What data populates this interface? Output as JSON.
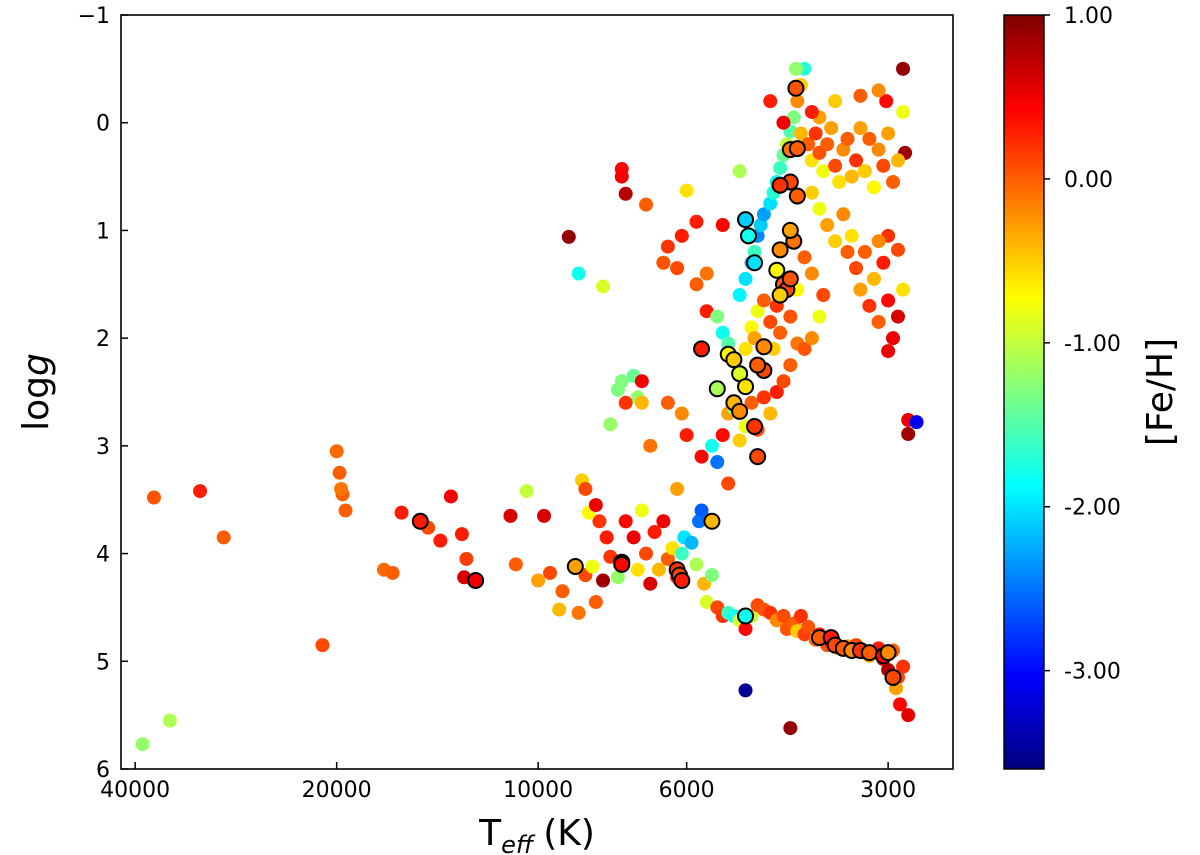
{
  "chart_data": {
    "type": "scatter",
    "title": "",
    "xlabel": {
      "main": "T",
      "sub": "eff",
      "unit": "(K)"
    },
    "ylabel": {
      "prefix": "log",
      "italic": "g"
    },
    "x_scale": "log",
    "x_reversed": true,
    "xlim": [
      42000,
      2400
    ],
    "ylim": [
      -1,
      6
    ],
    "y_reversed": true,
    "xticks": [
      40000,
      20000,
      10000,
      6000,
      3000
    ],
    "xtick_labels": [
      "40000",
      "20000",
      "10000",
      "6000",
      "3000"
    ],
    "yticks": [
      -1,
      0,
      1,
      2,
      3,
      4,
      5,
      6
    ],
    "ytick_labels": [
      "−1",
      "0",
      "1",
      "2",
      "3",
      "4",
      "5",
      "6"
    ],
    "colorbar": {
      "label": "[Fe/H]",
      "range": [
        -3.6,
        1.0
      ],
      "ticks": [
        1.0,
        0.0,
        -1.0,
        -2.0,
        -3.0
      ],
      "tick_labels": [
        "1.00",
        "0.00",
        "-1.00",
        "-2.00",
        "-3.00"
      ],
      "colormap": "jet",
      "colors": [
        "#00007f",
        "#0000ff",
        "#007fff",
        "#00ffff",
        "#7fff7f",
        "#ffff00",
        "#ff7f00",
        "#ff0000",
        "#7f0000"
      ]
    },
    "marker_edge_color": "#000000",
    "grid": false,
    "points": [
      [
        39000,
        5.77,
        -1.2
      ],
      [
        35500,
        5.55,
        -1.1
      ],
      [
        37500,
        3.48,
        0.05
      ],
      [
        32000,
        3.42,
        0.3
      ],
      [
        29500,
        3.85,
        0.0
      ],
      [
        21000,
        4.85,
        0.1
      ],
      [
        20000,
        3.05,
        -0.05
      ],
      [
        19800,
        3.25,
        0.0
      ],
      [
        19600,
        3.45,
        0.0
      ],
      [
        19400,
        3.6,
        0.0
      ],
      [
        19700,
        3.4,
        -0.1
      ],
      [
        17000,
        4.15,
        -0.05
      ],
      [
        16500,
        4.18,
        0.0
      ],
      [
        16000,
        3.62,
        0.3
      ],
      [
        15000,
        3.7,
        0.25
      ],
      [
        14600,
        3.76,
        0.1
      ],
      [
        14000,
        3.88,
        0.3
      ],
      [
        13500,
        3.47,
        0.45
      ],
      [
        12900,
        4.22,
        0.6
      ],
      [
        13000,
        3.82,
        0.3
      ],
      [
        12800,
        4.05,
        0.15
      ],
      [
        11000,
        3.65,
        0.6
      ],
      [
        10800,
        4.1,
        0.0
      ],
      [
        10400,
        3.42,
        -1.0
      ],
      [
        10000,
        4.25,
        -0.3
      ],
      [
        9800,
        3.65,
        0.6
      ],
      [
        9600,
        4.18,
        0.1
      ],
      [
        9300,
        4.52,
        -0.4
      ],
      [
        9000,
        1.06,
        0.9
      ],
      [
        9200,
        4.35,
        0.0
      ],
      [
        8700,
        4.55,
        -0.1
      ],
      [
        8500,
        4.2,
        0.1
      ],
      [
        8300,
        4.12,
        -0.8
      ],
      [
        8100,
        3.7,
        0.2
      ],
      [
        8000,
        4.25,
        0.85
      ],
      [
        8200,
        4.45,
        0.0
      ],
      [
        8400,
        3.62,
        -0.7
      ],
      [
        8600,
        3.32,
        -0.5
      ],
      [
        8500,
        3.4,
        0.1
      ],
      [
        8200,
        3.55,
        0.5
      ],
      [
        7900,
        3.85,
        0.3
      ],
      [
        7800,
        4.03,
        0.2
      ],
      [
        7600,
        4.22,
        -1.2
      ],
      [
        7500,
        4.1,
        0.3
      ],
      [
        7400,
        3.7,
        0.4
      ],
      [
        7200,
        3.85,
        0.5
      ],
      [
        7100,
        4.15,
        -0.6
      ],
      [
        7000,
        3.6,
        -0.8
      ],
      [
        6900,
        4.0,
        0.1
      ],
      [
        6800,
        4.28,
        0.6
      ],
      [
        6700,
        3.8,
        0.3
      ],
      [
        6600,
        4.15,
        -0.4
      ],
      [
        6500,
        3.7,
        0.5
      ],
      [
        6400,
        4.05,
        0.0
      ],
      [
        6300,
        3.95,
        -0.6
      ],
      [
        6200,
        4.22,
        0.2
      ],
      [
        6100,
        4.0,
        -1.6
      ],
      [
        6050,
        3.85,
        -2.0
      ],
      [
        5900,
        3.9,
        -2.2
      ],
      [
        5800,
        4.1,
        -1.1
      ],
      [
        5750,
        3.7,
        -2.5
      ],
      [
        5700,
        3.6,
        -2.6
      ],
      [
        5650,
        4.28,
        -0.4
      ],
      [
        5600,
        4.45,
        -0.9
      ],
      [
        5500,
        4.2,
        -1.3
      ],
      [
        5400,
        4.5,
        0.1
      ],
      [
        5300,
        4.58,
        0.2
      ],
      [
        5200,
        4.55,
        -1.6
      ],
      [
        5100,
        4.58,
        -1.8
      ],
      [
        5000,
        4.62,
        -0.9
      ],
      [
        4900,
        4.7,
        0.4
      ],
      [
        4800,
        4.58,
        -1.0
      ],
      [
        4700,
        4.48,
        0.1
      ],
      [
        4600,
        4.52,
        0.05
      ],
      [
        4500,
        4.55,
        0.2
      ],
      [
        4400,
        4.62,
        -0.2
      ],
      [
        4300,
        4.58,
        0.1
      ],
      [
        4250,
        4.7,
        0.05
      ],
      [
        4150,
        4.65,
        0.0
      ],
      [
        4100,
        4.72,
        -0.5
      ],
      [
        4050,
        4.58,
        0.2
      ],
      [
        4000,
        4.75,
        0.15
      ],
      [
        3950,
        4.68,
        0.05
      ],
      [
        3850,
        4.8,
        -0.1
      ],
      [
        3800,
        4.75,
        0.3
      ],
      [
        3700,
        4.85,
        0.05
      ],
      [
        3650,
        4.82,
        0.4
      ],
      [
        3550,
        4.88,
        0.0
      ],
      [
        3450,
        4.86,
        -0.3
      ],
      [
        3400,
        4.9,
        0.2
      ],
      [
        3350,
        4.85,
        0.1
      ],
      [
        3250,
        4.92,
        0.05
      ],
      [
        3200,
        4.95,
        -0.4
      ],
      [
        3100,
        4.88,
        0.3
      ],
      [
        3050,
        4.98,
        0.5
      ],
      [
        3000,
        5.08,
        0.8
      ],
      [
        2950,
        4.9,
        0.0
      ],
      [
        2900,
        5.15,
        0.1
      ],
      [
        2920,
        5.25,
        -0.3
      ],
      [
        2880,
        5.4,
        0.4
      ],
      [
        2800,
        5.5,
        0.55
      ],
      [
        2850,
        5.05,
        0.2
      ],
      [
        4200,
        5.62,
        0.9
      ],
      [
        4900,
        5.27,
        -3.5
      ],
      [
        2800,
        2.76,
        0.5
      ],
      [
        2720,
        2.78,
        -3.1
      ],
      [
        2800,
        2.89,
        0.85
      ],
      [
        2830,
        0.28,
        0.85
      ],
      [
        2850,
        -0.5,
        0.9
      ],
      [
        7500,
        0.43,
        0.4
      ],
      [
        7500,
        0.5,
        0.45
      ],
      [
        7400,
        0.66,
        0.75
      ],
      [
        6900,
        0.76,
        0.0
      ],
      [
        6000,
        0.63,
        -0.6
      ],
      [
        6200,
        1.35,
        0.1
      ],
      [
        6100,
        1.05,
        0.3
      ],
      [
        5800,
        0.92,
        0.3
      ],
      [
        6400,
        1.15,
        0.2
      ],
      [
        6500,
        1.3,
        0.05
      ],
      [
        7600,
        2.48,
        -1.3
      ],
      [
        7500,
        2.4,
        -1.3
      ],
      [
        7800,
        2.8,
        -1.2
      ],
      [
        7200,
        2.35,
        -1.4
      ],
      [
        7000,
        2.4,
        0.5
      ],
      [
        7100,
        2.55,
        -1.2
      ],
      [
        7400,
        2.6,
        0.2
      ],
      [
        8000,
        1.52,
        -0.9
      ],
      [
        8700,
        1.4,
        -1.8
      ],
      [
        6400,
        2.6,
        0.0
      ],
      [
        6100,
        2.7,
        -0.2
      ],
      [
        6000,
        2.9,
        0.3
      ],
      [
        6200,
        3.4,
        -0.3
      ],
      [
        5700,
        3.1,
        0.4
      ],
      [
        5500,
        3.0,
        -1.8
      ],
      [
        5400,
        3.15,
        -2.5
      ],
      [
        5200,
        3.35,
        0.1
      ],
      [
        5200,
        2.7,
        -0.3
      ],
      [
        5300,
        2.9,
        0.4
      ],
      [
        5000,
        2.95,
        -0.5
      ],
      [
        5100,
        2.65,
        -1.2
      ],
      [
        4900,
        2.82,
        -0.8
      ],
      [
        4800,
        2.6,
        0.0
      ],
      [
        4700,
        2.85,
        0.1
      ],
      [
        4600,
        2.55,
        0.2
      ],
      [
        4500,
        2.7,
        -0.4
      ],
      [
        4400,
        2.5,
        0.3
      ],
      [
        4300,
        2.4,
        0.1
      ],
      [
        4200,
        2.25,
        0.0
      ],
      [
        4100,
        2.05,
        -0.1
      ],
      [
        4000,
        2.1,
        0.05
      ],
      [
        3900,
        2.0,
        -0.2
      ],
      [
        5600,
        1.75,
        0.3
      ],
      [
        5800,
        1.5,
        0.0
      ],
      [
        5400,
        1.8,
        -1.3
      ],
      [
        5300,
        1.95,
        -1.8
      ],
      [
        5200,
        2.05,
        -1.5
      ],
      [
        5100,
        2.2,
        -1.0
      ],
      [
        5000,
        2.35,
        -1.4
      ],
      [
        4900,
        2.1,
        -0.6
      ],
      [
        4800,
        1.9,
        -0.7
      ],
      [
        4750,
        2.0,
        -0.3
      ],
      [
        4700,
        1.75,
        -0.8
      ],
      [
        4600,
        1.65,
        0.0
      ],
      [
        4500,
        1.85,
        0.1
      ],
      [
        4450,
        2.1,
        -0.5
      ],
      [
        4400,
        1.7,
        0.2
      ],
      [
        4350,
        1.95,
        0.0
      ],
      [
        4200,
        1.8,
        0.05
      ],
      [
        5000,
        1.6,
        -1.9
      ],
      [
        4900,
        1.45,
        -2.0
      ],
      [
        4800,
        1.3,
        -2.2
      ],
      [
        4750,
        1.2,
        -1.6
      ],
      [
        4700,
        1.05,
        -2.4
      ],
      [
        4650,
        0.95,
        -2.1
      ],
      [
        4600,
        0.85,
        -2.3
      ],
      [
        4500,
        0.75,
        -2.0
      ],
      [
        4450,
        0.65,
        -1.7
      ],
      [
        4400,
        0.55,
        -1.9
      ],
      [
        4350,
        0.42,
        -1.6
      ],
      [
        4300,
        0.3,
        -1.4
      ],
      [
        4250,
        0.2,
        -1.0
      ],
      [
        4200,
        0.08,
        -1.5
      ],
      [
        4150,
        -0.05,
        -1.3
      ],
      [
        4100,
        -0.2,
        -0.2
      ],
      [
        4050,
        -0.35,
        -0.5
      ],
      [
        4000,
        -0.5,
        -1.7
      ],
      [
        4120,
        -0.5,
        -1.2
      ],
      [
        4050,
        0.1,
        -0.4
      ],
      [
        3950,
        0.2,
        0.0
      ],
      [
        3900,
        0.35,
        -0.6
      ],
      [
        3850,
        0.1,
        0.2
      ],
      [
        3800,
        0.28,
        0.05
      ],
      [
        3750,
        0.45,
        -0.8
      ],
      [
        3700,
        0.2,
        0.0
      ],
      [
        3650,
        0.05,
        -0.3
      ],
      [
        3600,
        0.4,
        0.1
      ],
      [
        3550,
        0.55,
        -0.6
      ],
      [
        3500,
        0.25,
        -0.2
      ],
      [
        3450,
        0.15,
        0.0
      ],
      [
        3400,
        0.5,
        -0.4
      ],
      [
        3350,
        0.35,
        0.2
      ],
      [
        3300,
        0.05,
        -0.3
      ],
      [
        3250,
        0.45,
        -0.5
      ],
      [
        3200,
        0.15,
        0.0
      ],
      [
        3150,
        0.6,
        -0.7
      ],
      [
        3100,
        0.25,
        -0.2
      ],
      [
        3050,
        0.4,
        0.1
      ],
      [
        3000,
        0.1,
        -0.3
      ],
      [
        2950,
        0.55,
        0.0
      ],
      [
        2900,
        0.35,
        -0.4
      ],
      [
        2850,
        -0.1,
        -0.8
      ],
      [
        3020,
        -0.2,
        0.4
      ],
      [
        3100,
        -0.3,
        -0.2
      ],
      [
        3300,
        -0.25,
        0.0
      ],
      [
        3600,
        -0.2,
        -0.5
      ],
      [
        3800,
        -0.05,
        -0.3
      ],
      [
        3900,
        0.65,
        -0.5
      ],
      [
        3800,
        0.8,
        -0.8
      ],
      [
        3700,
        0.95,
        -0.3
      ],
      [
        3600,
        1.1,
        -0.5
      ],
      [
        3500,
        0.85,
        -0.2
      ],
      [
        3450,
        1.2,
        0.0
      ],
      [
        3400,
        1.05,
        -0.6
      ],
      [
        3350,
        1.35,
        0.1
      ],
      [
        3300,
        1.55,
        -0.3
      ],
      [
        3250,
        1.2,
        0.0
      ],
      [
        3200,
        1.7,
        0.2
      ],
      [
        3150,
        1.45,
        -0.4
      ],
      [
        3100,
        1.85,
        0.0
      ],
      [
        3050,
        1.3,
        0.3
      ],
      [
        3000,
        1.65,
        0.4
      ],
      [
        2950,
        2.0,
        0.5
      ],
      [
        2900,
        1.8,
        0.6
      ],
      [
        2850,
        1.55,
        -0.6
      ],
      [
        3000,
        2.12,
        0.5
      ],
      [
        3800,
        1.8,
        -0.8
      ],
      [
        3750,
        1.6,
        0.1
      ],
      [
        3900,
        1.4,
        -0.2
      ],
      [
        4000,
        1.25,
        0.0
      ],
      [
        4100,
        1.55,
        -0.7
      ],
      [
        2900,
        1.18,
        0.1
      ],
      [
        3000,
        1.05,
        0.2
      ],
      [
        3100,
        1.1,
        -0.2
      ],
      [
        3900,
        -0.1,
        0.3
      ],
      [
        4300,
        0.0,
        0.5
      ],
      [
        4500,
        -0.2,
        0.3
      ],
      [
        5000,
        0.45,
        -1.1
      ],
      [
        5300,
        0.95,
        0.4
      ],
      [
        5600,
        1.4,
        -0.1
      ],
      [
        6800,
        3.0,
        -0.1
      ],
      [
        7000,
        2.6,
        -0.4
      ]
    ],
    "circled_points": [
      [
        15000,
        3.7,
        0.3
      ],
      [
        12400,
        4.25,
        0.5
      ],
      [
        8800,
        4.12,
        -0.3
      ],
      [
        7500,
        4.08,
        0.3
      ],
      [
        7500,
        4.1,
        0.4
      ],
      [
        6200,
        4.15,
        0.2
      ],
      [
        6150,
        4.2,
        0.1
      ],
      [
        6100,
        4.25,
        0.3
      ],
      [
        5500,
        3.7,
        -0.4
      ],
      [
        5700,
        2.1,
        0.3
      ],
      [
        5400,
        2.47,
        -1.1
      ],
      [
        5200,
        2.15,
        -0.7
      ],
      [
        5100,
        2.2,
        -0.5
      ],
      [
        5000,
        2.33,
        -0.9
      ],
      [
        4900,
        2.45,
        -0.6
      ],
      [
        5100,
        2.6,
        -0.4
      ],
      [
        5000,
        2.68,
        -0.2
      ],
      [
        4700,
        3.1,
        0.1
      ],
      [
        4750,
        2.82,
        0.2
      ],
      [
        4600,
        2.3,
        0.1
      ],
      [
        4700,
        2.25,
        0.0
      ],
      [
        4600,
        2.08,
        -0.2
      ],
      [
        4900,
        0.9,
        -2.1
      ],
      [
        4850,
        1.05,
        -1.8
      ],
      [
        4750,
        1.3,
        -2.0
      ],
      [
        4350,
        1.18,
        -0.2
      ],
      [
        4400,
        1.37,
        -0.7
      ],
      [
        4300,
        1.5,
        0.0
      ],
      [
        4250,
        1.55,
        0.1
      ],
      [
        4350,
        1.6,
        -0.5
      ],
      [
        4200,
        1.45,
        0.05
      ],
      [
        4150,
        1.1,
        -0.1
      ],
      [
        4200,
        1.0,
        -0.3
      ],
      [
        4100,
        0.68,
        0.0
      ],
      [
        4200,
        0.55,
        0.1
      ],
      [
        4350,
        0.58,
        0.2
      ],
      [
        4200,
        0.25,
        -0.1
      ],
      [
        4100,
        0.24,
        0.0
      ],
      [
        4900,
        4.58,
        -1.8
      ],
      [
        3800,
        4.78,
        0.0
      ],
      [
        3650,
        4.78,
        0.3
      ],
      [
        3600,
        4.85,
        0.1
      ],
      [
        3500,
        4.88,
        0.0
      ],
      [
        3400,
        4.9,
        -0.2
      ],
      [
        3300,
        4.9,
        0.2
      ],
      [
        3200,
        4.92,
        0.0
      ],
      [
        3050,
        4.95,
        0.4
      ],
      [
        3000,
        4.92,
        -0.2
      ],
      [
        2950,
        5.15,
        0.1
      ],
      [
        4120,
        -0.32,
        0.05
      ]
    ]
  }
}
